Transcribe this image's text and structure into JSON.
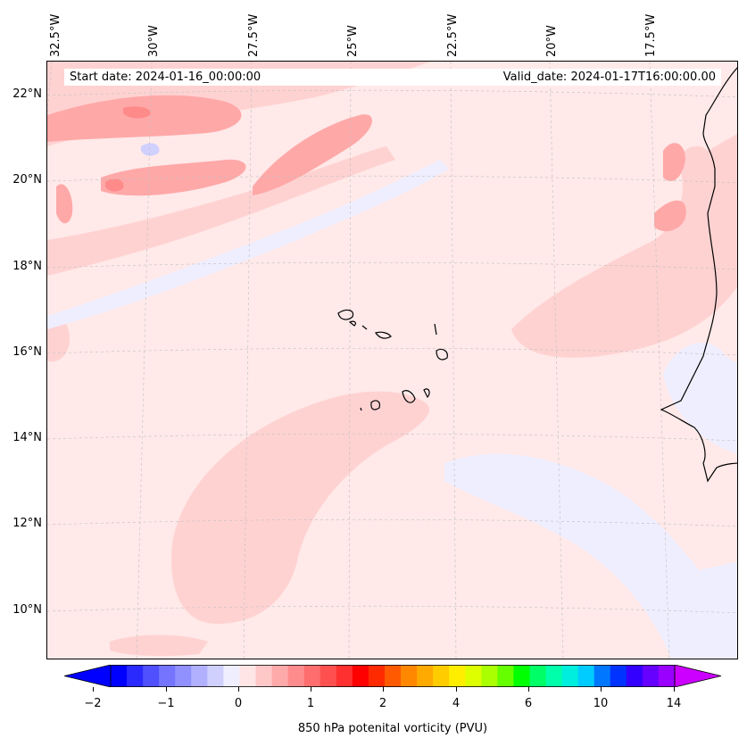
{
  "map": {
    "title_left": "Start date: 2024-01-16_00:00:00",
    "title_right": "Valid_date: 2024-01-17T16:00:00.00",
    "lon_labels": [
      "32.5°W",
      "30°W",
      "27.5°W",
      "25°W",
      "22.5°W",
      "20°W",
      "17.5°W"
    ],
    "lat_labels": [
      "22°N",
      "20°N",
      "18°N",
      "16°N",
      "14°N",
      "12°N",
      "10°N"
    ],
    "colors": {
      "background": "#ffe9e9",
      "light_pink": "#ffd2d2",
      "pink": "#ffa8a8",
      "red": "#ff8a8a",
      "lavender": "#eeeeff",
      "light_blue": "#d0d0ff",
      "coast": "#000000"
    }
  },
  "colorbar": {
    "label": "850 hPa potenital vorticity (PVU)",
    "tick_labels": [
      "−2",
      "−1",
      "0",
      "1",
      "2",
      "4",
      "6",
      "10",
      "14"
    ],
    "colors": [
      "#0000ff",
      "#2a2aff",
      "#5050ff",
      "#7474ff",
      "#9090ff",
      "#b0b0ff",
      "#d0d0ff",
      "#eeeeff",
      "#ffe5e5",
      "#ffc8c8",
      "#ffaaaa",
      "#ff8c8c",
      "#ff6e6e",
      "#ff5050",
      "#ff3030",
      "#ff0000",
      "#ff2a00",
      "#ff5a00",
      "#ff8800",
      "#ffaa00",
      "#ffcc00",
      "#ffee00",
      "#ddff00",
      "#aaff00",
      "#66ff00",
      "#00ff00",
      "#00ff66",
      "#00ffaa",
      "#00eedd",
      "#00ccff",
      "#0077ff",
      "#0033ff",
      "#3300ff",
      "#6600ff",
      "#9900ff"
    ],
    "extend_low_color": "#0000ff",
    "extend_high_color": "#cc00ff"
  }
}
